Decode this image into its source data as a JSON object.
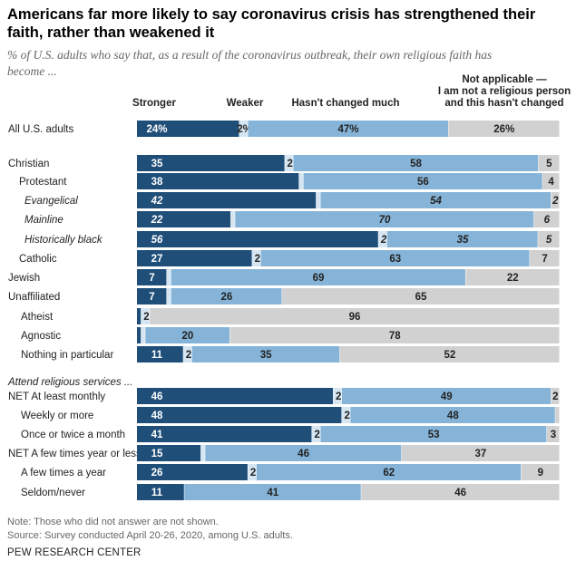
{
  "title": "Americans far more likely to say coronavirus crisis has strengthened their faith, rather than weakened it",
  "subtitle": "% of U.S. adults who say that, as a result of the coronavirus outbreak, their own religious faith has become ...",
  "note": "Note: Those who did not answer are not shown.",
  "source": "Source: Survey conducted April 20-26, 2020, among U.S. adults.",
  "brand": "PEW RESEARCH CENTER",
  "colors": {
    "Stronger": "#1f4e79",
    "Weaker": "#d5e5f2",
    "Hasn't changed much": "#86b4d8",
    "Not applicable": "#d1d1d1"
  },
  "chart_data": {
    "type": "bar",
    "orientation": "horizontal-stacked",
    "legend_labels": [
      "Stronger",
      "Weaker",
      "Hasn't changed much",
      "Not applicable —\nI am not a religious person\nand this hasn't changed"
    ],
    "section_label": "Attend religious services ...",
    "categories": [
      "All U.S. adults",
      "Christian",
      "Protestant",
      "Evangelical",
      "Mainline",
      "Historically black",
      "Catholic",
      "Jewish",
      "Unaffiliated",
      "Atheist",
      "Agnostic",
      "Nothing in particular",
      "NET At least monthly",
      "Weekly or more",
      "Once or twice a month",
      "NET A few times year or less",
      "A few times a year",
      "Seldom/never"
    ],
    "series": [
      {
        "name": "Stronger",
        "values": [
          24,
          35,
          38,
          42,
          22,
          56,
          27,
          7,
          7,
          1,
          1,
          11,
          46,
          48,
          41,
          15,
          26,
          11
        ]
      },
      {
        "name": "Weaker",
        "values": [
          2,
          2,
          1,
          1,
          1,
          2,
          2,
          1,
          1,
          2,
          1,
          2,
          2,
          2,
          2,
          1,
          2,
          0
        ]
      },
      {
        "name": "Hasn't changed much",
        "values": [
          47,
          58,
          56,
          54,
          70,
          35,
          63,
          69,
          26,
          0,
          20,
          35,
          49,
          48,
          53,
          46,
          62,
          41
        ]
      },
      {
        "name": "Not applicable",
        "values": [
          26,
          5,
          4,
          2,
          6,
          5,
          7,
          22,
          65,
          96,
          78,
          52,
          2,
          1,
          3,
          37,
          9,
          46
        ]
      }
    ],
    "value_labels": [
      [
        "24%",
        "2%",
        "47%",
        "26%"
      ],
      [
        "35",
        "2",
        "58",
        "5"
      ],
      [
        "38",
        "",
        "56",
        "4"
      ],
      [
        "42",
        "",
        "54",
        "2"
      ],
      [
        "22",
        "",
        "70",
        "6"
      ],
      [
        "56",
        "2",
        "35",
        "5"
      ],
      [
        "27",
        "2",
        "63",
        "7"
      ],
      [
        "7",
        "",
        "69",
        "22"
      ],
      [
        "7",
        "",
        "26",
        "65"
      ],
      [
        "",
        "2",
        "",
        "96"
      ],
      [
        "",
        "",
        "20",
        "78"
      ],
      [
        "11",
        "2",
        "35",
        "52"
      ],
      [
        "46",
        "2",
        "49",
        "2"
      ],
      [
        "48",
        "2",
        "48",
        ""
      ],
      [
        "41",
        "2",
        "53",
        "3"
      ],
      [
        "15",
        "",
        "46",
        "37"
      ],
      [
        "26",
        "2",
        "62",
        "9"
      ],
      [
        "11",
        "",
        "41",
        "46"
      ]
    ],
    "italic_rows": [
      3,
      4,
      5
    ],
    "indent_rows": [
      2,
      3,
      4,
      5,
      6,
      9,
      10,
      11,
      13,
      14,
      16,
      17
    ],
    "xlim": [
      0,
      100
    ]
  }
}
